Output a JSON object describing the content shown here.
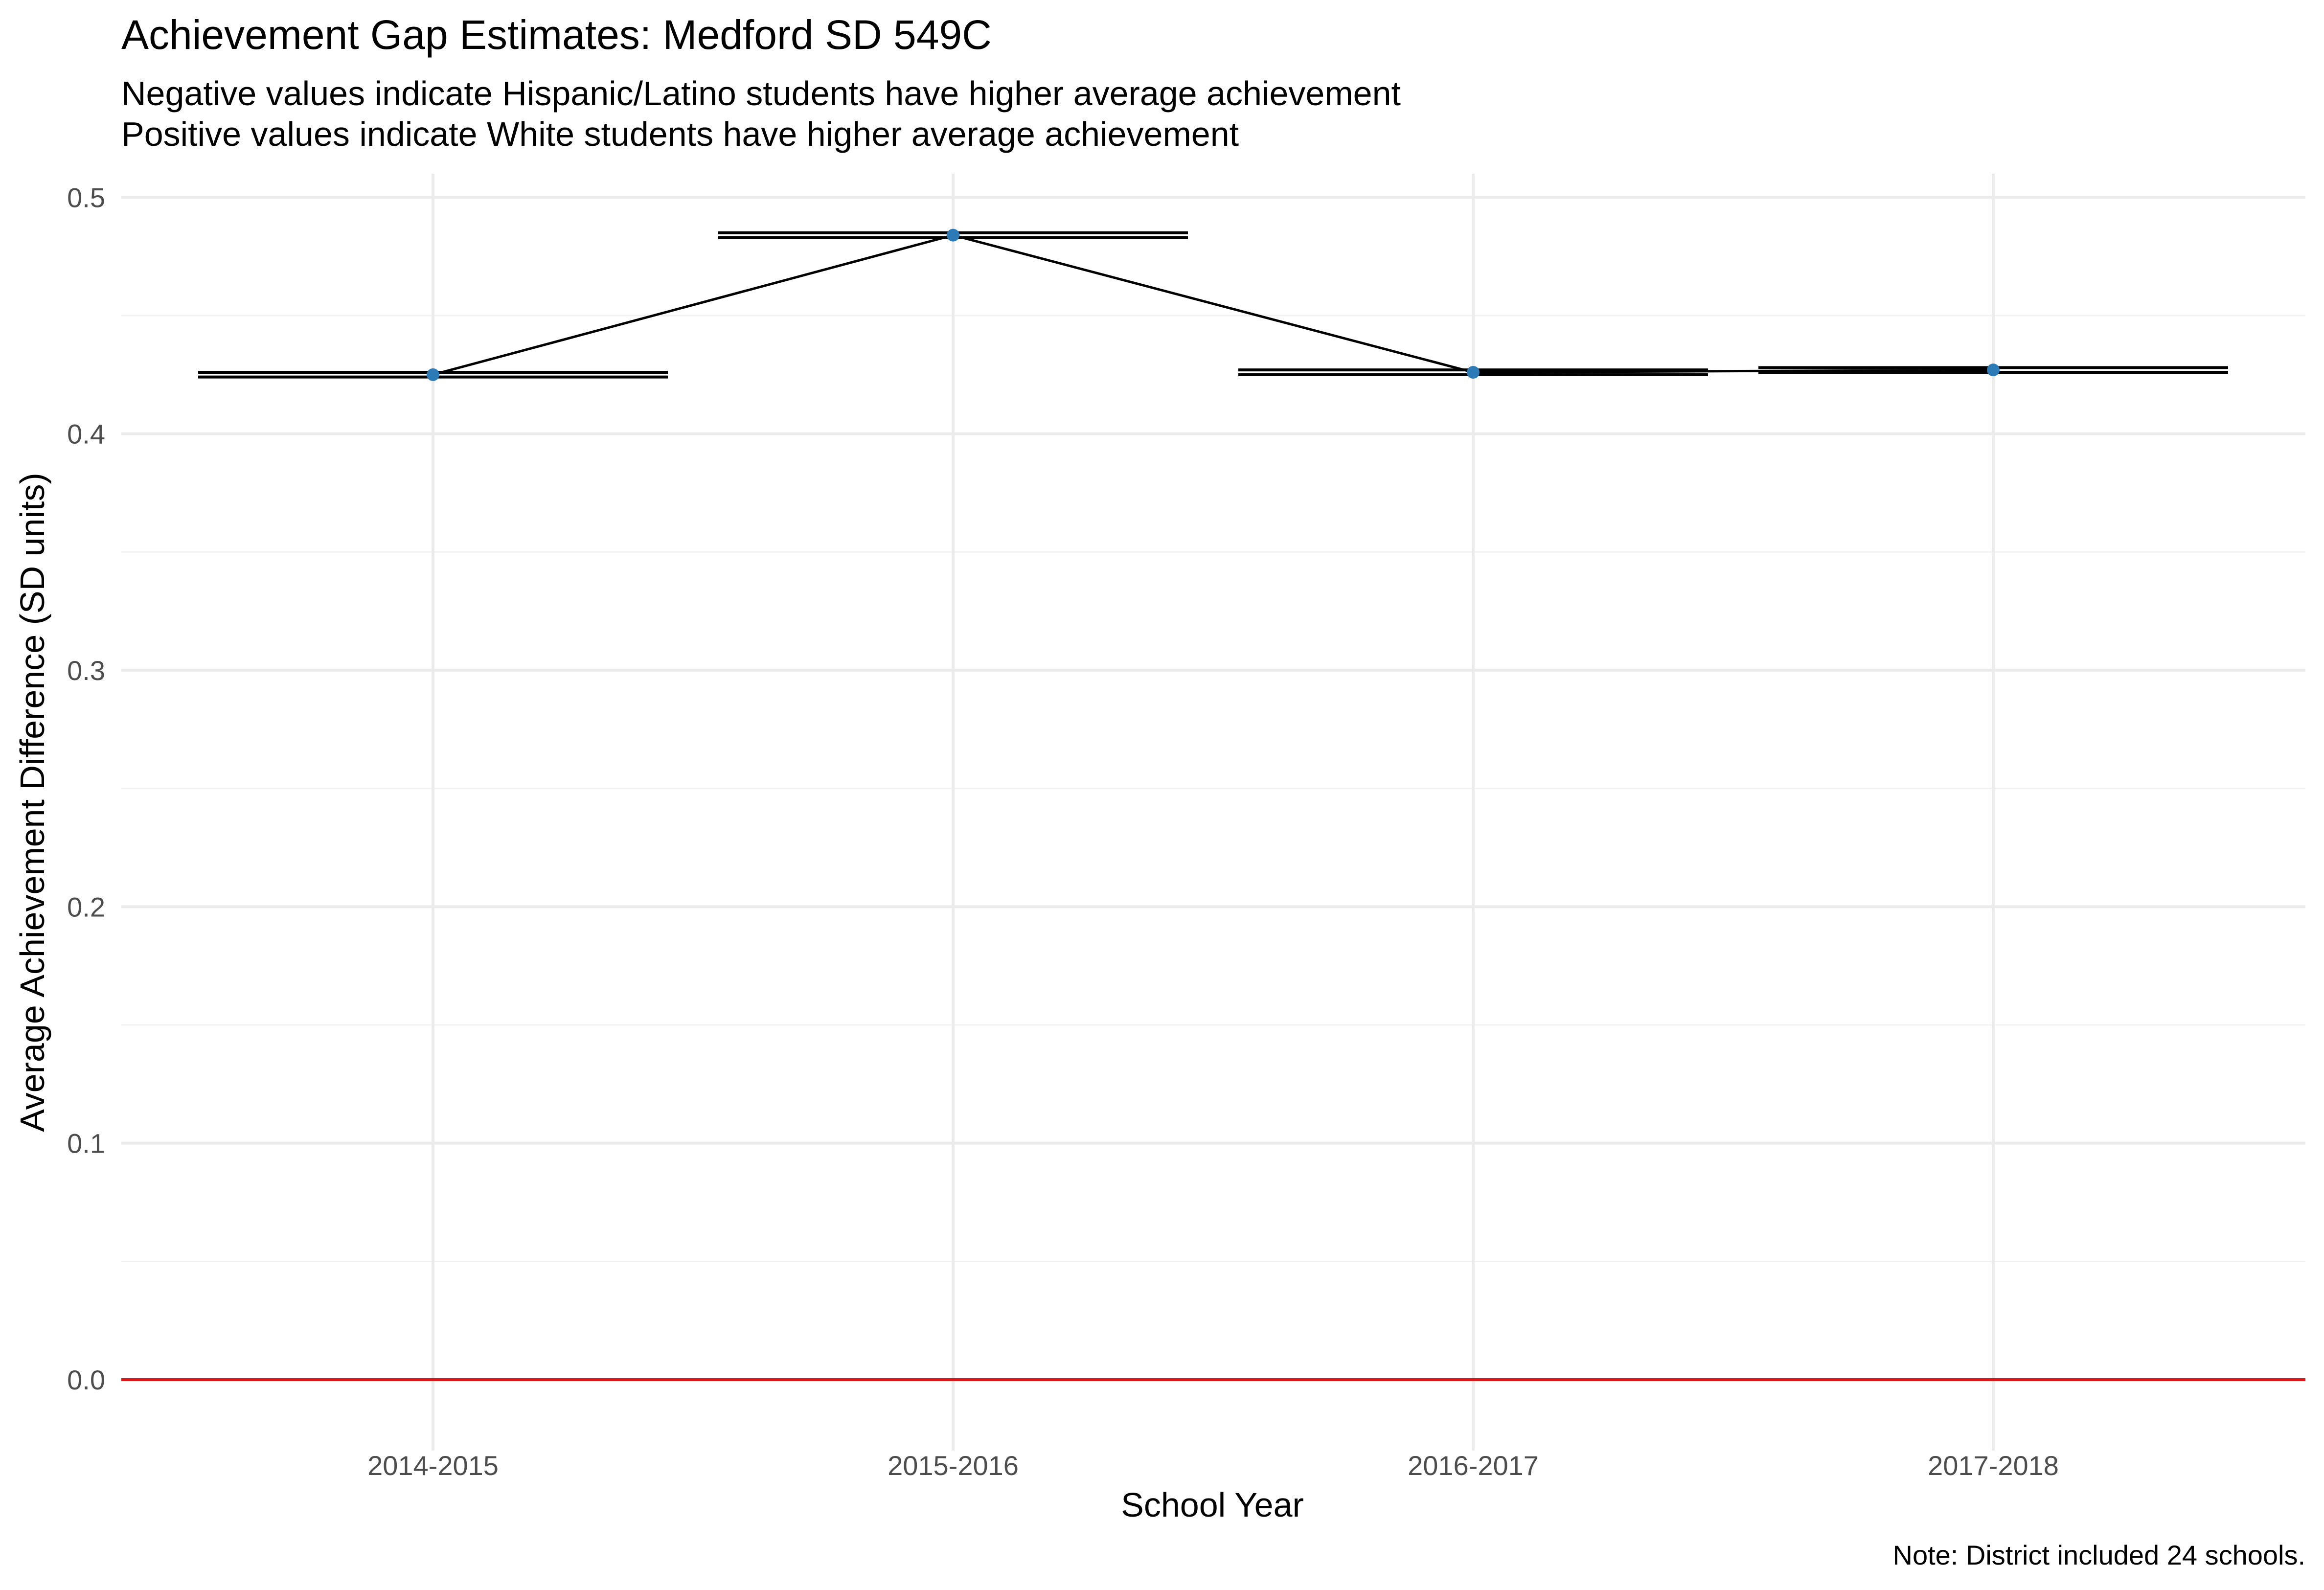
{
  "chart_data": {
    "type": "line",
    "title": "Achievement Gap Estimates: Medford SD 549C",
    "subtitle_lines": [
      "Negative values indicate Hispanic/Latino students have higher average achievement",
      "Positive values indicate White students have higher average achievement"
    ],
    "xlabel": "School Year",
    "ylabel": "Average Achievement Difference (SD units)",
    "caption": "Note: District included 24 schools.",
    "categories": [
      "2014-2015",
      "2015-2016",
      "2016-2017",
      "2017-2018"
    ],
    "series": [
      {
        "values": [
          0.425,
          0.484,
          0.426,
          0.427
        ],
        "ci_lower": [
          0.424,
          0.483,
          0.425,
          0.426
        ],
        "ci_upper": [
          0.426,
          0.485,
          0.427,
          0.428
        ]
      }
    ],
    "ylim": [
      -0.03,
      0.51
    ],
    "yticks": [
      0.0,
      0.1,
      0.2,
      0.3,
      0.4,
      0.5
    ],
    "ytick_labels": [
      "0.0",
      "0.1",
      "0.2",
      "0.3",
      "0.4",
      "0.5"
    ],
    "reference_line": {
      "y": 0.0,
      "color": "#d7191c"
    },
    "point_color": "#2c7bb6",
    "line_color": "#000000",
    "grid": true,
    "legend": "none"
  }
}
